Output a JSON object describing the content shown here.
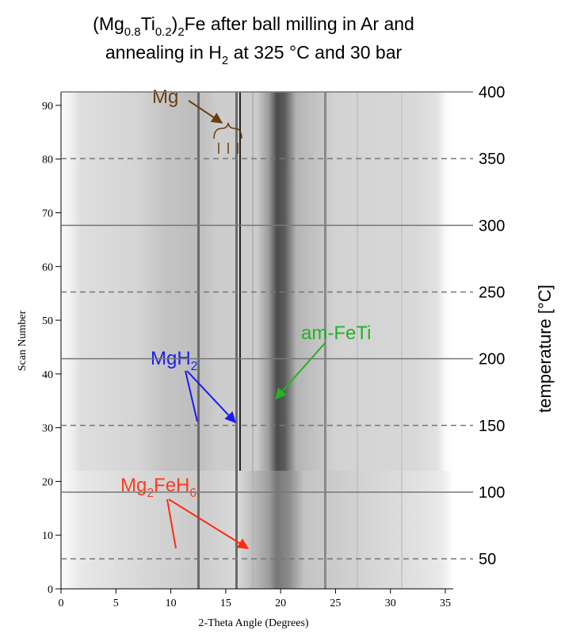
{
  "chart_data": {
    "type": "heatmap",
    "title": [
      [
        {
          "text": "(Mg"
        },
        {
          "text": "0.8",
          "sub": true
        },
        {
          "text": "Ti"
        },
        {
          "text": "0.2",
          "sub": true
        },
        {
          "text": ")"
        },
        {
          "text": "2",
          "sub": true
        },
        {
          "text": "Fe after ball milling in Ar and"
        }
      ],
      [
        {
          "text": "annealing in H"
        },
        {
          "text": "2",
          "sub": true
        },
        {
          "text": " at 325 °C and 30 bar"
        }
      ]
    ],
    "x_label": "2-Theta Angle (Degrees)",
    "y_label": "Scan Number",
    "y2_label": "temperature [°C]",
    "xlim": [
      0,
      35
    ],
    "xticks": [
      0,
      5,
      10,
      15,
      20,
      25,
      30,
      35
    ],
    "ylim": [
      0,
      92.5
    ],
    "yticks": [
      0,
      10,
      20,
      30,
      40,
      50,
      60,
      70,
      80,
      90
    ],
    "y2lim": [
      27.5,
      400
    ],
    "y2ticks": [
      50,
      100,
      150,
      200,
      250,
      300,
      350,
      400
    ],
    "annotations": [
      {
        "parts": [
          {
            "text": "Mg"
          }
        ],
        "color": "#6b3d10"
      },
      {
        "parts": [
          {
            "text": "MgH"
          },
          {
            "text": "2",
            "sub": true
          }
        ],
        "color": "#1a1aff"
      },
      {
        "parts": [
          {
            "text": "am-FeTi"
          }
        ],
        "color": "#22b422"
      },
      {
        "parts": [
          {
            "text": "Mg"
          },
          {
            "text": "2",
            "sub": true
          },
          {
            "text": "FeH"
          },
          {
            "text": "6",
            "sub": true
          }
        ],
        "color": "#ff3b1f"
      }
    ]
  }
}
